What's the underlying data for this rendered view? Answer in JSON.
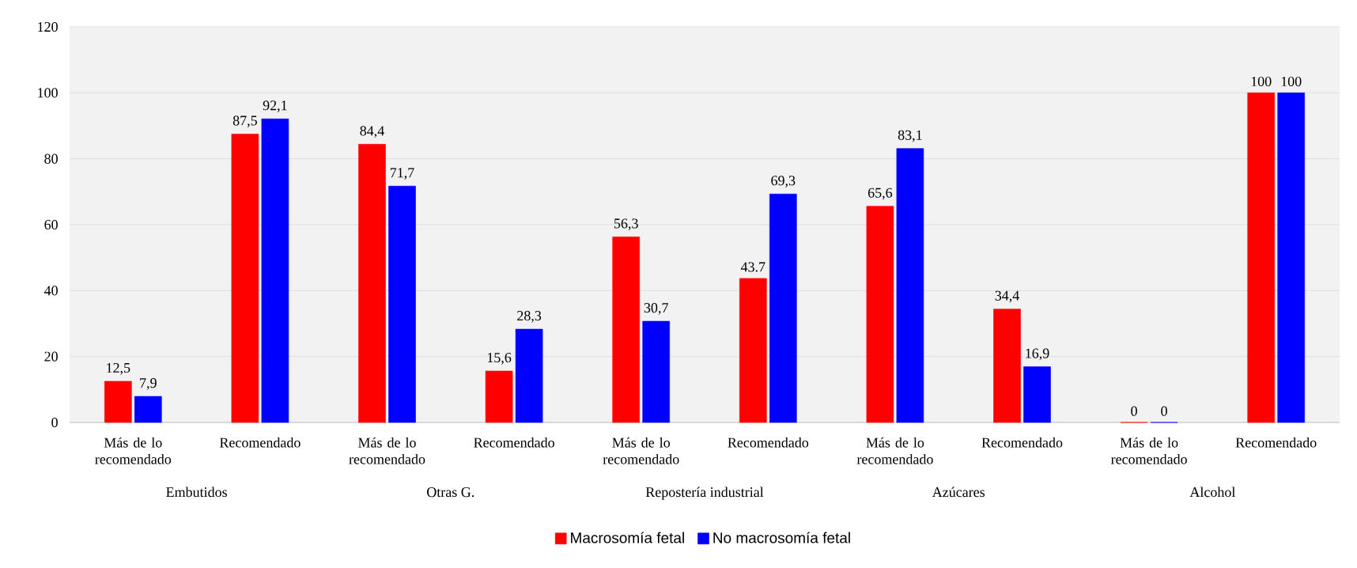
{
  "chart_data": {
    "type": "bar",
    "categories": [
      "Más de lo recomendado",
      "Recomendado",
      "Más de lo recomendado",
      "Recomendado",
      "Más de lo recomendado",
      "Recomendado",
      "Más de lo recomendado",
      "Recomendado",
      "Más de lo recomendado",
      "Recomendado"
    ],
    "annotations": [
      "Embutidos",
      "Otras G.",
      "Repostería industrial",
      "Azúcares",
      "Alcohol"
    ],
    "series": [
      {
        "name": "Macrosomía fetal",
        "color": "#ff0000",
        "values": [
          12.5,
          87.5,
          84.4,
          15.6,
          56.3,
          43.7,
          65.6,
          34.4,
          0,
          100
        ],
        "value_labels": [
          "12,5",
          "87,5",
          "84,4",
          "15,6",
          "56,3",
          "43.7",
          "65,6",
          "34,4",
          "0",
          "100"
        ]
      },
      {
        "name": "No macrosomía fetal",
        "color": "#0000ff",
        "values": [
          7.9,
          92.1,
          71.7,
          28.3,
          30.7,
          69.3,
          83.1,
          16.9,
          0,
          100
        ],
        "value_labels": [
          "7,9",
          "92,1",
          "71,7",
          "28,3",
          "30,7",
          "69,3",
          "83,1",
          "16,9",
          "0",
          "100"
        ]
      }
    ],
    "ylim": [
      0,
      120
    ],
    "yticks": [
      0,
      20,
      40,
      60,
      80,
      100,
      120
    ],
    "grid": "y",
    "legend": "bottom"
  }
}
